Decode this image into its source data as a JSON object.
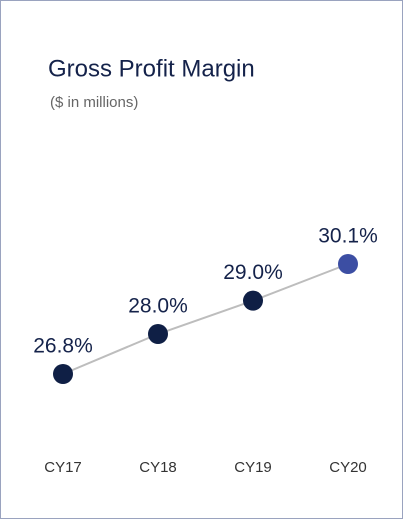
{
  "chart_data": {
    "type": "line",
    "title": "Gross Profit Margin",
    "subtitle": "($ in millions)",
    "categories": [
      "CY17",
      "CY18",
      "CY19",
      "CY20"
    ],
    "series": [
      {
        "values": [
          26.8,
          28.0,
          29.0,
          30.1
        ],
        "value_labels": [
          "26.8%",
          "28.0%",
          "29.0%",
          "30.1%"
        ],
        "color": "#bdbdbd",
        "point_colors": [
          "#0f1f45",
          "#0f1f45",
          "#0f1f45",
          "#3c4ea3"
        ]
      }
    ]
  }
}
